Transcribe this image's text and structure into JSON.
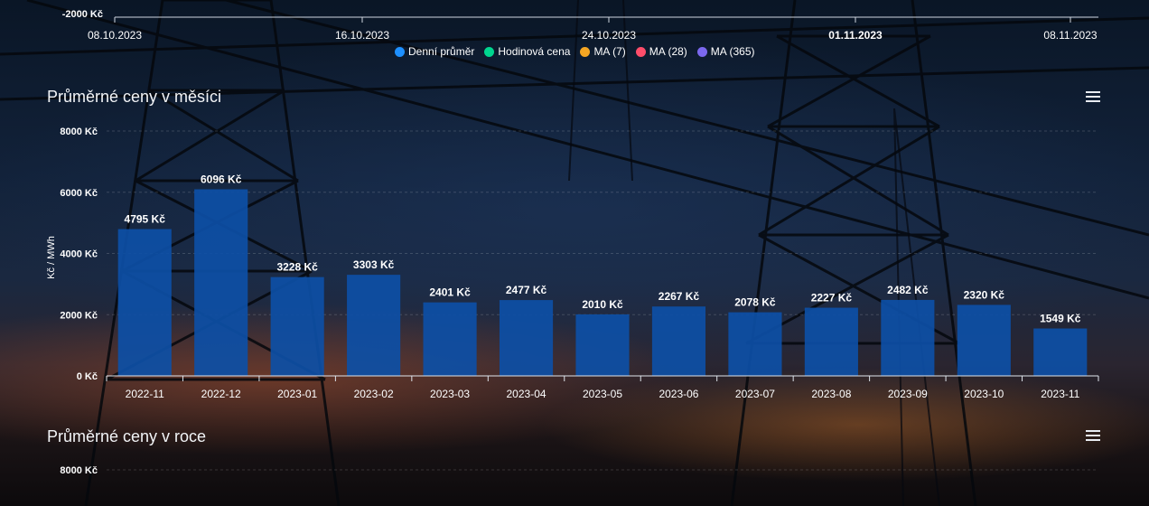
{
  "top_axis": {
    "y_tick": "-2000 Kč",
    "dates": [
      {
        "label": "08.10.2023",
        "bold": false
      },
      {
        "label": "16.10.2023",
        "bold": false
      },
      {
        "label": "24.10.2023",
        "bold": false
      },
      {
        "label": "01.11.2023",
        "bold": true
      },
      {
        "label": "08.11.2023",
        "bold": false
      }
    ]
  },
  "legend": [
    {
      "label": "Denní průměr",
      "color": "#1e90ff"
    },
    {
      "label": "Hodinová cena",
      "color": "#00d68f"
    },
    {
      "label": "MA (7)",
      "color": "#f5a623"
    },
    {
      "label": "MA (28)",
      "color": "#ff4d6a"
    },
    {
      "label": "MA (365)",
      "color": "#7b68ee"
    }
  ],
  "monthly": {
    "title": "Průměrné ceny v měsíci",
    "menu_icon": "hamburger-menu-icon"
  },
  "yearly": {
    "title": "Průměrné ceny v roce",
    "menu_icon": "hamburger-menu-icon",
    "top_tick": "8000 Kč"
  },
  "chart_data": {
    "type": "bar",
    "title": "Průměrné ceny v měsíci",
    "ylabel": "Kč / MWh",
    "xlabel": "",
    "ylim": [
      0,
      8000
    ],
    "yticks": [
      0,
      2000,
      4000,
      6000,
      8000
    ],
    "tick_suffix": " Kč",
    "label_suffix": " Kč",
    "grid": true,
    "bar_color": "#0d4fa6",
    "categories": [
      "2022-11",
      "2022-12",
      "2023-01",
      "2023-02",
      "2023-03",
      "2023-04",
      "2023-05",
      "2023-06",
      "2023-07",
      "2023-08",
      "2023-09",
      "2023-10",
      "2023-11"
    ],
    "values": [
      4795,
      6096,
      3228,
      3303,
      2401,
      2477,
      2010,
      2267,
      2078,
      2227,
      2482,
      2320,
      1549
    ]
  }
}
